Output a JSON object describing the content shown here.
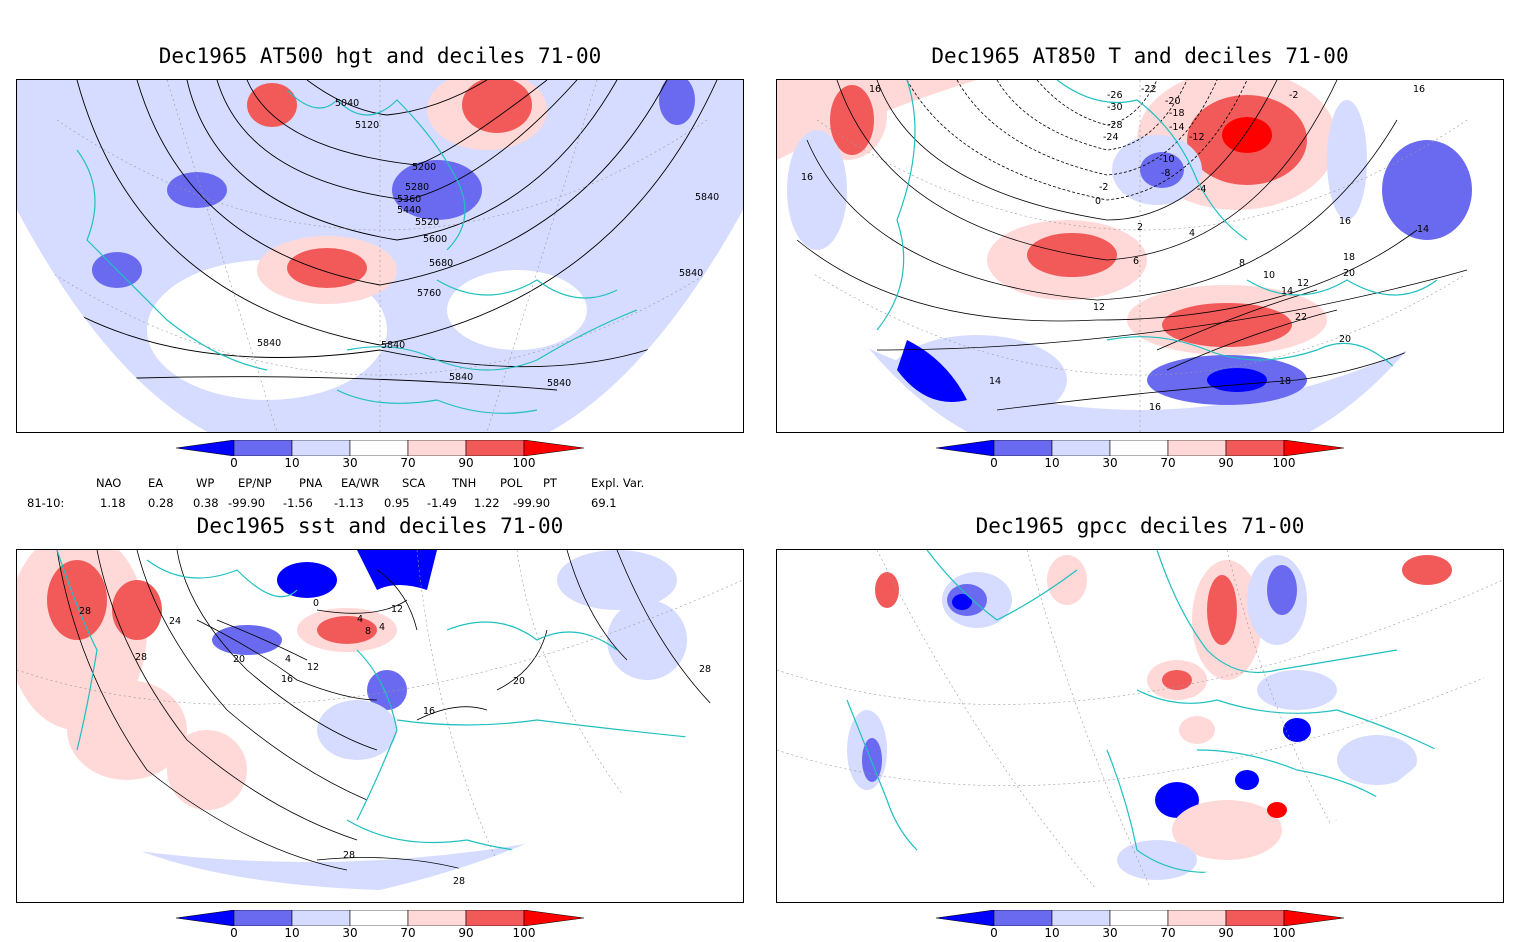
{
  "panels": {
    "p1": {
      "title": "Dec1965 AT500 hgt and deciles 71-00",
      "contour_labels": [
        "5040",
        "5120",
        "5200",
        "5280",
        "5360",
        "5440",
        "5520",
        "5600",
        "5680",
        "5760",
        "5840",
        "5840",
        "5840",
        "5840",
        "5840",
        "5840"
      ]
    },
    "p2": {
      "title": "Dec1965 AT850 T and deciles 71-00",
      "contour_labels": [
        "16",
        "16",
        "16",
        "-22",
        "-26",
        "-20",
        "-18",
        "-30",
        "-2",
        "-28",
        "-14",
        "-24",
        "-12",
        "-10",
        "-8",
        "-2",
        "-4",
        "0",
        "2",
        "4",
        "6",
        "8",
        "10",
        "12",
        "12",
        "14",
        "14",
        "16",
        "18",
        "20",
        "20",
        "22",
        "14",
        "18",
        "16"
      ]
    },
    "p3": {
      "title": "Dec1965 sst and deciles 71-00",
      "contour_labels": [
        "28",
        "24",
        "28",
        "20",
        "16",
        "12",
        "4",
        "0",
        "4",
        "8",
        "4",
        "12",
        "20",
        "16",
        "28",
        "28",
        "28"
      ]
    },
    "p4": {
      "title": "Dec1965 gpcc deciles 71-00",
      "contour_labels": []
    }
  },
  "colorbar": {
    "labels": [
      "0",
      "10",
      "30",
      "70",
      "90",
      "100"
    ],
    "colors": [
      "#0000ff",
      "#6a6af0",
      "#d6dcff",
      "#ffffff",
      "#ffd8d8",
      "#f25a5a",
      "#ff0000"
    ]
  },
  "teleconnection": {
    "headers": [
      "NAO",
      "EA",
      "WP",
      "EP/NP",
      "PNA",
      "EA/WR",
      "SCA",
      "TNH",
      "POL",
      "PT",
      "Expl. Var."
    ],
    "row_label": "81-10:",
    "values": [
      "1.18",
      "0.28",
      "0.38",
      "-99.90",
      "-1.56",
      "-1.13",
      "0.95",
      "-1.49",
      "1.22",
      "-99.90",
      "69.1"
    ]
  },
  "colors": {
    "coastline": "#20c0c0",
    "contour": "#000000"
  }
}
